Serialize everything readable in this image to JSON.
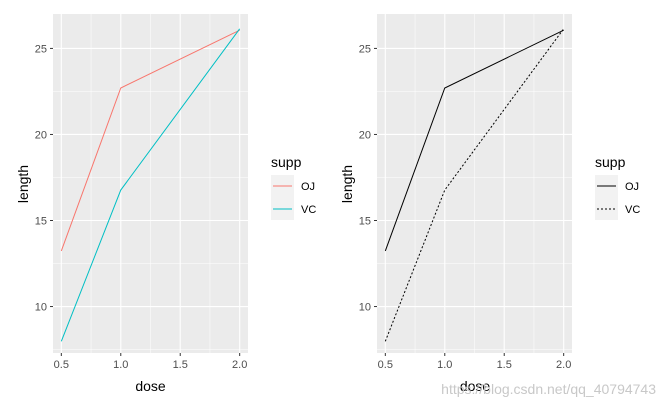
{
  "watermark": "https://blog.csdn.net/qq_40794743",
  "chart_data": [
    {
      "type": "line",
      "x": [
        0.5,
        1.0,
        2.0
      ],
      "xlim": [
        0.43,
        2.07
      ],
      "ylim": [
        7.3,
        27.0
      ],
      "xticks": [
        0.5,
        1.0,
        1.5,
        2.0
      ],
      "xtick_labels": [
        "0.5",
        "1.0",
        "1.5",
        "2.0"
      ],
      "yticks": [
        10,
        15,
        20,
        25
      ],
      "ytick_labels": [
        "10",
        "15",
        "20",
        "25"
      ],
      "xlabel": "dose",
      "ylabel": "length",
      "grid": true,
      "legend": {
        "title": "supp",
        "placement": "right"
      },
      "series": [
        {
          "name": "OJ",
          "values": [
            13.23,
            22.7,
            26.06
          ],
          "color": "#F8766D",
          "dash": "solid"
        },
        {
          "name": "VC",
          "values": [
            7.98,
            16.77,
            26.14
          ],
          "color": "#00BFC4",
          "dash": "solid"
        }
      ]
    },
    {
      "type": "line",
      "x": [
        0.5,
        1.0,
        2.0
      ],
      "xlim": [
        0.43,
        2.07
      ],
      "ylim": [
        7.3,
        27.0
      ],
      "xticks": [
        0.5,
        1.0,
        1.5,
        2.0
      ],
      "xtick_labels": [
        "0.5",
        "1.0",
        "1.5",
        "2.0"
      ],
      "yticks": [
        10,
        15,
        20,
        25
      ],
      "ytick_labels": [
        "10",
        "15",
        "20",
        "25"
      ],
      "xlabel": "dose",
      "ylabel": "length",
      "grid": true,
      "legend": {
        "title": "supp",
        "placement": "right"
      },
      "series": [
        {
          "name": "OJ",
          "values": [
            13.23,
            22.7,
            26.06
          ],
          "color": "#000000",
          "dash": "solid"
        },
        {
          "name": "VC",
          "values": [
            7.98,
            16.77,
            26.14
          ],
          "color": "#000000",
          "dash": "dotted"
        }
      ]
    }
  ]
}
